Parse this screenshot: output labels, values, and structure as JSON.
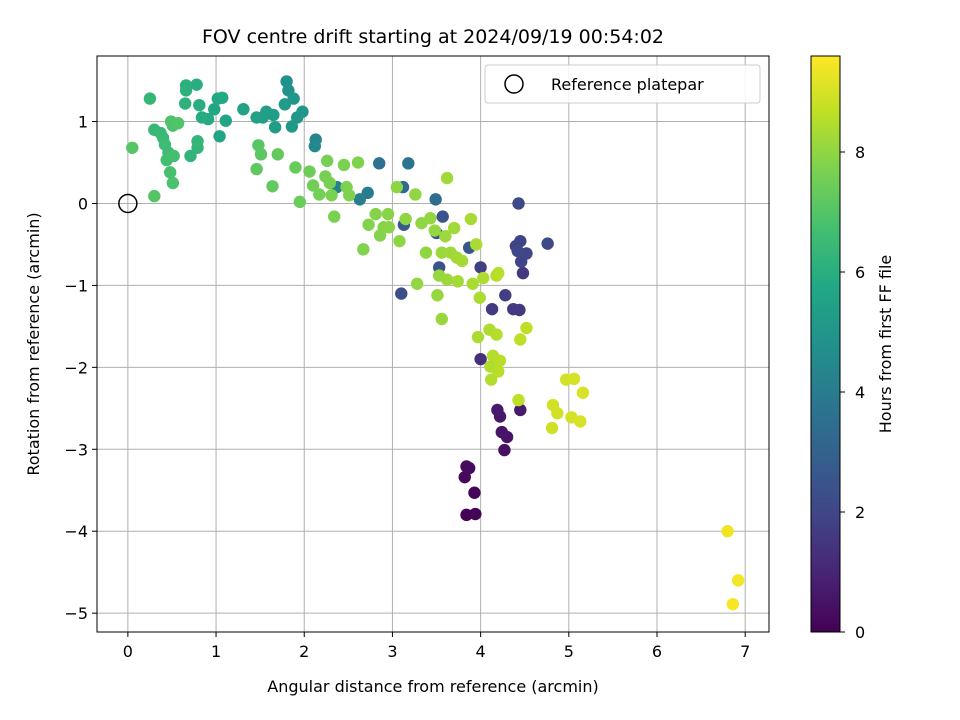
{
  "chart_data": {
    "type": "scatter",
    "title": "FOV centre drift starting at 2024/09/19 00:54:02",
    "xlabel": "Angular distance from reference (arcmin)",
    "ylabel": "Rotation from reference (arcmin)",
    "xlim": [
      -0.35,
      7.27
    ],
    "ylim": [
      -5.23,
      1.8
    ],
    "xticks": [
      0,
      1,
      2,
      3,
      4,
      5,
      6,
      7
    ],
    "yticks": [
      -5,
      -4,
      -3,
      -2,
      -1,
      0,
      1
    ],
    "grid": true,
    "legend": {
      "position": "top-right",
      "entries": [
        "Reference platepar"
      ]
    },
    "reference_point": {
      "x": 0,
      "y": 0
    },
    "colorbar": {
      "label": "Hours from first FF file",
      "range": [
        0,
        9.6
      ],
      "ticks": [
        0,
        2,
        4,
        6,
        8
      ],
      "colormap": "viridis"
    },
    "points": [
      {
        "x": 3.84,
        "y": -3.8,
        "c": 0.05
      },
      {
        "x": 3.94,
        "y": -3.79,
        "c": 0.1
      },
      {
        "x": 3.93,
        "y": -3.53,
        "c": 0.15
      },
      {
        "x": 3.82,
        "y": -3.34,
        "c": 0.2
      },
      {
        "x": 3.87,
        "y": -3.23,
        "c": 0.25
      },
      {
        "x": 3.84,
        "y": -3.21,
        "c": 0.3
      },
      {
        "x": 4.27,
        "y": -3.01,
        "c": 0.45
      },
      {
        "x": 4.3,
        "y": -2.85,
        "c": 0.5
      },
      {
        "x": 4.24,
        "y": -2.79,
        "c": 0.55
      },
      {
        "x": 4.22,
        "y": -2.6,
        "c": 0.6
      },
      {
        "x": 4.19,
        "y": -2.52,
        "c": 0.65
      },
      {
        "x": 4.45,
        "y": -2.52,
        "c": 0.7
      },
      {
        "x": 4.0,
        "y": -1.9,
        "c": 1.3
      },
      {
        "x": 4.48,
        "y": -0.85,
        "c": 1.5
      },
      {
        "x": 4.44,
        "y": -1.3,
        "c": 1.55
      },
      {
        "x": 4.37,
        "y": -1.29,
        "c": 1.6
      },
      {
        "x": 4.13,
        "y": -1.29,
        "c": 1.65
      },
      {
        "x": 4.28,
        "y": -1.12,
        "c": 1.7
      },
      {
        "x": 4.0,
        "y": -0.78,
        "c": 1.8
      },
      {
        "x": 4.4,
        "y": -0.52,
        "c": 1.85
      },
      {
        "x": 4.45,
        "y": -0.46,
        "c": 1.9
      },
      {
        "x": 4.46,
        "y": -0.71,
        "c": 1.95
      },
      {
        "x": 4.52,
        "y": -0.61,
        "c": 2.0
      },
      {
        "x": 4.42,
        "y": -0.58,
        "c": 2.05
      },
      {
        "x": 4.76,
        "y": -0.49,
        "c": 2.1
      },
      {
        "x": 4.43,
        "y": 0.0,
        "c": 2.15
      },
      {
        "x": 3.1,
        "y": -1.1,
        "c": 2.3
      },
      {
        "x": 3.53,
        "y": -0.78,
        "c": 2.4
      },
      {
        "x": 3.5,
        "y": -0.36,
        "c": 2.45
      },
      {
        "x": 3.57,
        "y": -0.16,
        "c": 2.5
      },
      {
        "x": 3.87,
        "y": -0.54,
        "c": 2.6
      },
      {
        "x": 3.13,
        "y": -0.26,
        "c": 2.7
      },
      {
        "x": 3.12,
        "y": 0.2,
        "c": 3.3
      },
      {
        "x": 3.49,
        "y": 0.05,
        "c": 3.4
      },
      {
        "x": 2.85,
        "y": 0.49,
        "c": 3.6
      },
      {
        "x": 3.18,
        "y": 0.49,
        "c": 3.7
      },
      {
        "x": 2.72,
        "y": 0.13,
        "c": 4.0
      },
      {
        "x": 2.63,
        "y": 0.05,
        "c": 4.1
      },
      {
        "x": 2.37,
        "y": 0.2,
        "c": 4.2
      },
      {
        "x": 2.13,
        "y": 0.78,
        "c": 4.4
      },
      {
        "x": 2.12,
        "y": 0.7,
        "c": 4.5
      },
      {
        "x": 1.8,
        "y": 1.49,
        "c": 4.8
      },
      {
        "x": 1.82,
        "y": 1.38,
        "c": 4.9
      },
      {
        "x": 1.88,
        "y": 1.28,
        "c": 5.0
      },
      {
        "x": 1.98,
        "y": 1.12,
        "c": 5.05
      },
      {
        "x": 1.92,
        "y": 1.05,
        "c": 5.1
      },
      {
        "x": 1.86,
        "y": 0.94,
        "c": 5.15
      },
      {
        "x": 1.78,
        "y": 1.21,
        "c": 5.2
      },
      {
        "x": 1.67,
        "y": 0.93,
        "c": 5.25
      },
      {
        "x": 1.65,
        "y": 1.08,
        "c": 5.3
      },
      {
        "x": 1.57,
        "y": 1.12,
        "c": 5.35
      },
      {
        "x": 1.53,
        "y": 1.05,
        "c": 5.4
      },
      {
        "x": 1.46,
        "y": 1.05,
        "c": 5.45
      },
      {
        "x": 1.31,
        "y": 1.15,
        "c": 5.5
      },
      {
        "x": 1.11,
        "y": 1.01,
        "c": 5.6
      },
      {
        "x": 1.04,
        "y": 0.82,
        "c": 5.65
      },
      {
        "x": 0.98,
        "y": 1.15,
        "c": 5.7
      },
      {
        "x": 1.02,
        "y": 1.28,
        "c": 5.75
      },
      {
        "x": 1.07,
        "y": 1.29,
        "c": 5.8
      },
      {
        "x": 0.91,
        "y": 1.03,
        "c": 5.85
      },
      {
        "x": 0.84,
        "y": 1.05,
        "c": 5.9
      },
      {
        "x": 0.81,
        "y": 1.2,
        "c": 5.95
      },
      {
        "x": 0.78,
        "y": 1.45,
        "c": 6.0
      },
      {
        "x": 0.66,
        "y": 1.44,
        "c": 6.05
      },
      {
        "x": 0.66,
        "y": 1.38,
        "c": 6.1
      },
      {
        "x": 0.65,
        "y": 1.22,
        "c": 6.15
      },
      {
        "x": 0.71,
        "y": 0.58,
        "c": 6.2
      },
      {
        "x": 0.79,
        "y": 0.68,
        "c": 6.25
      },
      {
        "x": 0.79,
        "y": 0.76,
        "c": 6.3
      },
      {
        "x": 0.25,
        "y": 1.28,
        "c": 6.35
      },
      {
        "x": 0.3,
        "y": 0.9,
        "c": 6.4
      },
      {
        "x": 0.37,
        "y": 0.86,
        "c": 6.45
      },
      {
        "x": 0.4,
        "y": 0.8,
        "c": 6.5
      },
      {
        "x": 0.42,
        "y": 0.72,
        "c": 6.55
      },
      {
        "x": 0.46,
        "y": 0.62,
        "c": 6.6
      },
      {
        "x": 0.44,
        "y": 0.53,
        "c": 6.65
      },
      {
        "x": 0.52,
        "y": 0.58,
        "c": 6.7
      },
      {
        "x": 0.48,
        "y": 0.38,
        "c": 6.75
      },
      {
        "x": 0.51,
        "y": 0.25,
        "c": 6.8
      },
      {
        "x": 0.51,
        "y": 0.95,
        "c": 6.85
      },
      {
        "x": 0.49,
        "y": 1.0,
        "c": 6.9
      },
      {
        "x": 0.57,
        "y": 0.98,
        "c": 6.95
      },
      {
        "x": 0.3,
        "y": 0.09,
        "c": 7.0
      },
      {
        "x": 0.05,
        "y": 0.68,
        "c": 7.05
      },
      {
        "x": 1.48,
        "y": 0.71,
        "c": 7.1
      },
      {
        "x": 1.51,
        "y": 0.6,
        "c": 7.15
      },
      {
        "x": 1.46,
        "y": 0.42,
        "c": 7.2
      },
      {
        "x": 1.64,
        "y": 0.21,
        "c": 7.25
      },
      {
        "x": 1.7,
        "y": 0.6,
        "c": 7.3
      },
      {
        "x": 1.9,
        "y": 0.44,
        "c": 7.35
      },
      {
        "x": 1.95,
        "y": 0.02,
        "c": 7.4
      },
      {
        "x": 2.06,
        "y": 0.39,
        "c": 7.45
      },
      {
        "x": 2.1,
        "y": 0.22,
        "c": 7.5
      },
      {
        "x": 2.17,
        "y": 0.11,
        "c": 7.55
      },
      {
        "x": 2.24,
        "y": 0.33,
        "c": 7.6
      },
      {
        "x": 2.26,
        "y": 0.52,
        "c": 7.62
      },
      {
        "x": 2.29,
        "y": 0.25,
        "c": 7.64
      },
      {
        "x": 2.31,
        "y": 0.1,
        "c": 7.66
      },
      {
        "x": 2.34,
        "y": -0.16,
        "c": 7.68
      },
      {
        "x": 2.45,
        "y": 0.47,
        "c": 7.7
      },
      {
        "x": 2.48,
        "y": 0.2,
        "c": 7.72
      },
      {
        "x": 2.51,
        "y": 0.1,
        "c": 7.74
      },
      {
        "x": 2.61,
        "y": 0.5,
        "c": 7.76
      },
      {
        "x": 2.67,
        "y": -0.56,
        "c": 7.78
      },
      {
        "x": 2.73,
        "y": -0.26,
        "c": 7.8
      },
      {
        "x": 2.81,
        "y": -0.13,
        "c": 7.82
      },
      {
        "x": 2.86,
        "y": -0.39,
        "c": 7.84
      },
      {
        "x": 2.9,
        "y": -0.29,
        "c": 7.86
      },
      {
        "x": 2.95,
        "y": -0.13,
        "c": 7.88
      },
      {
        "x": 2.96,
        "y": -0.29,
        "c": 7.9
      },
      {
        "x": 3.05,
        "y": 0.2,
        "c": 7.92
      },
      {
        "x": 3.08,
        "y": -0.46,
        "c": 7.94
      },
      {
        "x": 3.15,
        "y": -0.19,
        "c": 7.96
      },
      {
        "x": 3.26,
        "y": 0.11,
        "c": 7.98
      },
      {
        "x": 3.33,
        "y": -0.24,
        "c": 8.0
      },
      {
        "x": 3.38,
        "y": -0.6,
        "c": 8.0
      },
      {
        "x": 3.28,
        "y": -0.98,
        "c": 8.02
      },
      {
        "x": 3.43,
        "y": -0.18,
        "c": 8.04
      },
      {
        "x": 3.48,
        "y": -0.33,
        "c": 8.06
      },
      {
        "x": 3.53,
        "y": -0.88,
        "c": 8.08
      },
      {
        "x": 3.51,
        "y": -1.12,
        "c": 8.1
      },
      {
        "x": 3.56,
        "y": -1.41,
        "c": 8.12
      },
      {
        "x": 3.56,
        "y": -0.6,
        "c": 8.14
      },
      {
        "x": 3.6,
        "y": -0.4,
        "c": 8.16
      },
      {
        "x": 3.62,
        "y": -0.93,
        "c": 8.18
      },
      {
        "x": 3.66,
        "y": -0.6,
        "c": 8.2
      },
      {
        "x": 3.7,
        "y": -0.3,
        "c": 8.22
      },
      {
        "x": 3.62,
        "y": 0.31,
        "c": 8.24
      },
      {
        "x": 3.73,
        "y": -0.66,
        "c": 8.26
      },
      {
        "x": 3.74,
        "y": -0.95,
        "c": 8.28
      },
      {
        "x": 3.79,
        "y": -0.7,
        "c": 8.3
      },
      {
        "x": 3.89,
        "y": -0.19,
        "c": 8.32
      },
      {
        "x": 3.91,
        "y": -0.98,
        "c": 8.34
      },
      {
        "x": 3.95,
        "y": -0.5,
        "c": 8.36
      },
      {
        "x": 3.97,
        "y": -1.63,
        "c": 8.38
      },
      {
        "x": 3.99,
        "y": -1.15,
        "c": 8.4
      },
      {
        "x": 4.03,
        "y": -0.91,
        "c": 8.42
      },
      {
        "x": 4.1,
        "y": -1.54,
        "c": 8.44
      },
      {
        "x": 4.11,
        "y": -1.99,
        "c": 8.46
      },
      {
        "x": 4.12,
        "y": -2.15,
        "c": 8.48
      },
      {
        "x": 4.14,
        "y": -1.86,
        "c": 8.5
      },
      {
        "x": 4.18,
        "y": -1.6,
        "c": 8.52
      },
      {
        "x": 4.18,
        "y": -0.88,
        "c": 8.54
      },
      {
        "x": 4.2,
        "y": -0.85,
        "c": 8.56
      },
      {
        "x": 4.2,
        "y": -2.05,
        "c": 8.58
      },
      {
        "x": 4.22,
        "y": -1.92,
        "c": 8.6
      },
      {
        "x": 4.43,
        "y": -2.4,
        "c": 8.62
      },
      {
        "x": 4.45,
        "y": -1.66,
        "c": 8.64
      },
      {
        "x": 4.52,
        "y": -1.52,
        "c": 8.66
      },
      {
        "x": 4.81,
        "y": -2.74,
        "c": 8.9
      },
      {
        "x": 4.82,
        "y": -2.46,
        "c": 8.92
      },
      {
        "x": 4.87,
        "y": -2.56,
        "c": 8.94
      },
      {
        "x": 4.97,
        "y": -2.15,
        "c": 8.96
      },
      {
        "x": 5.03,
        "y": -2.61,
        "c": 8.98
      },
      {
        "x": 5.06,
        "y": -2.14,
        "c": 9.0
      },
      {
        "x": 5.13,
        "y": -2.66,
        "c": 9.02
      },
      {
        "x": 5.16,
        "y": -2.31,
        "c": 9.04
      },
      {
        "x": 6.8,
        "y": -4.0,
        "c": 9.4
      },
      {
        "x": 6.92,
        "y": -4.6,
        "c": 9.45
      },
      {
        "x": 6.86,
        "y": -4.89,
        "c": 9.5
      }
    ]
  }
}
